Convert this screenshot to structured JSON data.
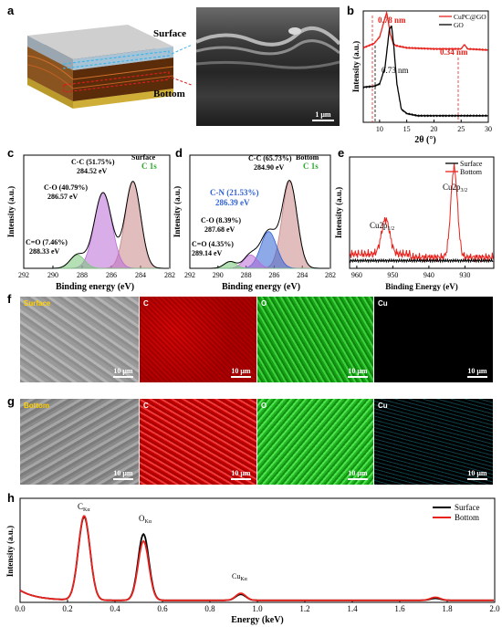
{
  "panels": {
    "a": {
      "label": "a",
      "surface": "Surface",
      "bottom": "Bottom",
      "scale": "1 μm"
    },
    "b": {
      "label": "b",
      "xlabel": "2θ (°)",
      "ylabel": "Intensity (a.u.)",
      "legend": [
        "CuPC@GO",
        "GO"
      ],
      "ann": [
        "0.78 nm",
        "0.34 nm",
        "0.73 nm"
      ],
      "xticks": [
        "10",
        "15",
        "20",
        "25",
        "30"
      ]
    },
    "c": {
      "label": "c",
      "xlabel": "Binding energy (eV)",
      "ylabel": "Intensity (a.u.)",
      "tag": "Surface",
      "tag2": "C 1s",
      "peaks": [
        [
          "C-C (51.75%)",
          "284.52 eV"
        ],
        [
          "C-O (40.79%)",
          "286.57 eV"
        ],
        [
          "C=O (7.46%)",
          "288.33 eV"
        ]
      ],
      "xticks": [
        "292",
        "290",
        "288",
        "286",
        "284",
        "282"
      ]
    },
    "d": {
      "label": "d",
      "xlabel": "Binding energy (eV)",
      "ylabel": "Intensity (a.u.)",
      "tag": "Bottom",
      "tag2": "C 1s",
      "peaks": [
        [
          "C-C (65.73%)",
          "284.90 eV"
        ],
        [
          "C-N (21.53%)",
          "286.39 eV"
        ],
        [
          "C-O (8.39%)",
          "287.68 eV"
        ],
        [
          "C=O (4.35%)",
          "289.14 eV"
        ]
      ],
      "xticks": [
        "292",
        "290",
        "288",
        "286",
        "284",
        "282"
      ]
    },
    "e": {
      "label": "e",
      "xlabel": "Binding Energy (eV)",
      "ylabel": "Intensity (a.u.)",
      "legend": [
        "Surface",
        "Bottom"
      ],
      "peak1": "Cu2p",
      "peak1sub": "1/2",
      "peak2": "Cu2p",
      "peak2sub": "3/2",
      "xticks": [
        "960",
        "950",
        "940",
        "930"
      ]
    },
    "f": {
      "label": "f",
      "tiles": [
        "Surface",
        "C",
        "O",
        "Cu"
      ],
      "scale": "10 μm"
    },
    "g": {
      "label": "g",
      "tiles": [
        "Bottom",
        "C",
        "O",
        "Cu"
      ],
      "scale": "10 μm"
    },
    "h": {
      "label": "h",
      "xlabel": "Energy (keV)",
      "ylabel": "Intensity (a.u.)",
      "legend": [
        "Surface",
        "Bottom"
      ],
      "peaks": [
        [
          "C",
          "Kα"
        ],
        [
          "O",
          "Kα"
        ],
        [
          "Cu",
          "Kα"
        ]
      ],
      "xticks": [
        "0.0",
        "0.2",
        "0.4",
        "0.6",
        "0.8",
        "1.0",
        "1.2",
        "1.4",
        "1.6",
        "1.8",
        "2.0"
      ]
    }
  },
  "colors": {
    "red": "#e8221c",
    "black": "#000000",
    "pink": "#e6a7a7",
    "violet": "#b96ad6",
    "green": "#79c779",
    "blue": "#2f63d6"
  },
  "chart_data": [
    {
      "type": "line",
      "panel": "b",
      "xlabel": "2θ (°)",
      "ylabel": "Intensity (a.u.)",
      "xlim": [
        7,
        30
      ],
      "series": [
        {
          "name": "CuPC@GO",
          "x": [
            7,
            9,
            10,
            11,
            11.3,
            11.6,
            12,
            12.5,
            13,
            15,
            20,
            25,
            25.6,
            26.2,
            30
          ],
          "y": [
            0.68,
            0.72,
            0.78,
            0.95,
            1.0,
            0.92,
            0.8,
            0.72,
            0.7,
            0.68,
            0.67,
            0.67,
            0.71,
            0.67,
            0.66
          ]
        },
        {
          "name": "GO",
          "x": [
            7,
            9,
            10,
            11,
            11.8,
            12.2,
            12.6,
            13.2,
            14,
            15,
            17,
            20,
            25,
            30
          ],
          "y": [
            0.32,
            0.33,
            0.35,
            0.5,
            0.85,
            0.88,
            0.7,
            0.35,
            0.12,
            0.08,
            0.06,
            0.06,
            0.06,
            0.06
          ]
        }
      ]
    },
    {
      "type": "line",
      "panel": "c",
      "xlabel": "Binding energy (eV)",
      "ylabel": "Intensity (a.u.)",
      "series": [
        {
          "name": "C-C",
          "center": 284.52,
          "share": 51.75
        },
        {
          "name": "C-O",
          "center": 286.57,
          "share": 40.79
        },
        {
          "name": "C=O",
          "center": 288.33,
          "share": 7.46
        }
      ]
    },
    {
      "type": "line",
      "panel": "d",
      "xlabel": "Binding energy (eV)",
      "ylabel": "Intensity (a.u.)",
      "series": [
        {
          "name": "C-C",
          "center": 284.9,
          "share": 65.73
        },
        {
          "name": "C-N",
          "center": 286.39,
          "share": 21.53
        },
        {
          "name": "C-O",
          "center": 287.68,
          "share": 8.39
        },
        {
          "name": "C=O",
          "center": 289.14,
          "share": 4.35
        }
      ]
    },
    {
      "type": "line",
      "panel": "e",
      "xlabel": "Binding Energy (eV)",
      "ylabel": "Intensity (a.u.)",
      "series": [
        {
          "name": "Surface",
          "peaks": []
        },
        {
          "name": "Bottom",
          "peaks": [
            952,
            933
          ]
        }
      ]
    },
    {
      "type": "line",
      "panel": "h",
      "xlabel": "Energy (keV)",
      "ylabel": "Intensity (a.u.)",
      "xlim": [
        0,
        2
      ],
      "series": [
        {
          "name": "Surface",
          "peaks": [
            [
              0.27,
              0.83
            ],
            [
              0.52,
              0.66
            ],
            [
              0.93,
              0.06
            ],
            [
              1.75,
              0.02
            ]
          ]
        },
        {
          "name": "Bottom",
          "peaks": [
            [
              0.27,
              0.84
            ],
            [
              0.52,
              0.59
            ],
            [
              0.93,
              0.07
            ],
            [
              1.75,
              0.03
            ]
          ]
        }
      ]
    }
  ]
}
